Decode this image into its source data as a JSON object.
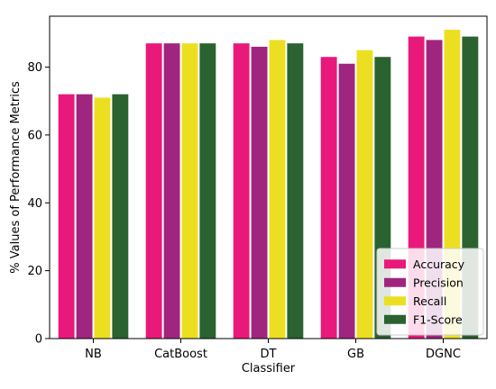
{
  "chart_data": {
    "type": "bar",
    "title": "",
    "xlabel": "Classifier",
    "ylabel": "% Values of Performance Metrics",
    "categories": [
      "NB",
      "CatBoost",
      "DT",
      "GB",
      "DGNC"
    ],
    "yticks": [
      0,
      20,
      40,
      60,
      80
    ],
    "ylim": [
      0,
      95
    ],
    "grid": false,
    "legend_position": "lower-right",
    "series": [
      {
        "name": "Accuracy",
        "color": "#e8197a",
        "values": [
          72,
          87,
          87,
          83,
          89
        ]
      },
      {
        "name": "Precision",
        "color": "#a0257f",
        "values": [
          72,
          87,
          86,
          81,
          88
        ]
      },
      {
        "name": "Recall",
        "color": "#ecdf22",
        "values": [
          71,
          87,
          88,
          85,
          91
        ]
      },
      {
        "name": "F1-Score",
        "color": "#2a6230",
        "values": [
          72,
          87,
          87,
          83,
          89
        ]
      }
    ]
  }
}
